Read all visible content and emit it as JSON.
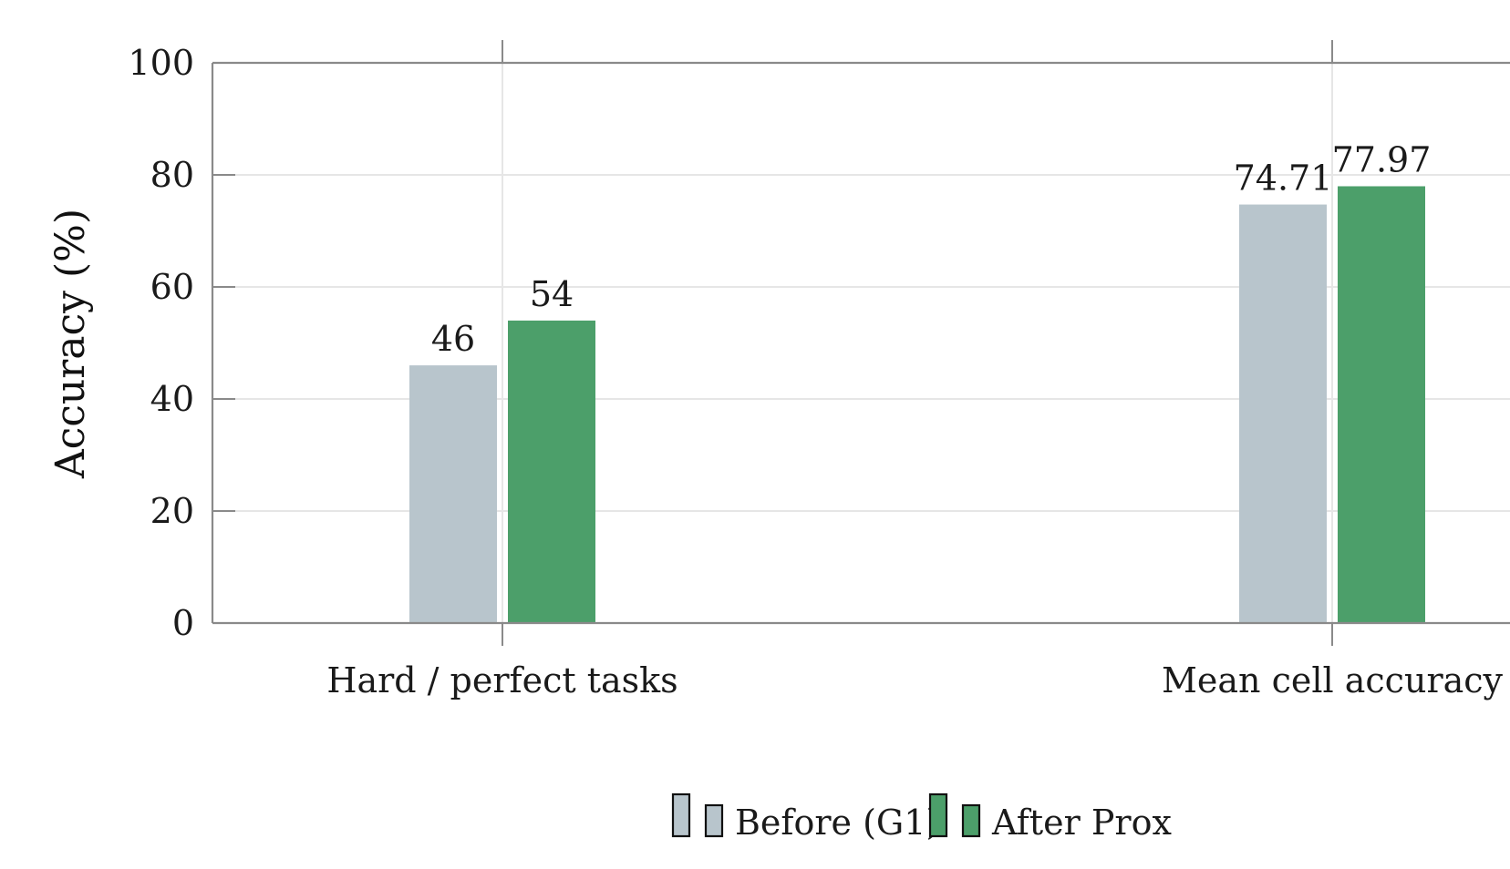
{
  "chart_data": {
    "type": "bar",
    "title": "",
    "xlabel": "",
    "ylabel": "Accuracy (%)",
    "ylim": [
      0,
      100
    ],
    "yticks": [
      "0",
      "20",
      "40",
      "60",
      "80",
      "100"
    ],
    "grid": true,
    "legend_placement": "bottom-center",
    "categories": [
      "Hard / perfect tasks",
      "Mean cell accuracy"
    ],
    "series": [
      {
        "name": "Before (G1)",
        "color": "#b8c5cc",
        "values": [
          46,
          74.71
        ],
        "labels": [
          "46",
          "74.71"
        ]
      },
      {
        "name": "After Prox",
        "color": "#4c9f6a",
        "values": [
          54,
          77.97
        ],
        "labels": [
          "54",
          "77.97"
        ]
      }
    ]
  }
}
